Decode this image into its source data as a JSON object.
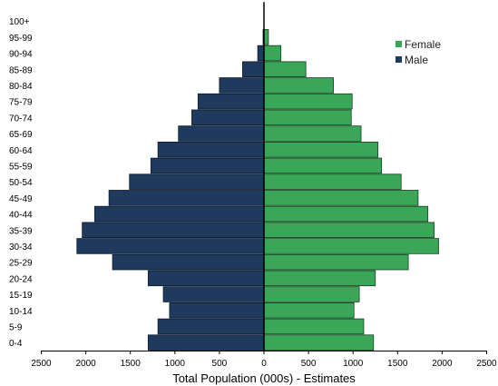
{
  "chart_data": {
    "type": "bar",
    "orientation": "horizontal",
    "subtype": "population-pyramid",
    "categories": [
      "0-4",
      "5-9",
      "10-14",
      "15-19",
      "20-24",
      "25-29",
      "30-34",
      "35-39",
      "40-44",
      "45-49",
      "50-54",
      "55-59",
      "60-64",
      "65-69",
      "70-74",
      "75-79",
      "80-84",
      "85-89",
      "90-94",
      "95-99",
      "100+"
    ],
    "series": [
      {
        "name": "Male",
        "color": "#1f3a5c",
        "values": [
          1300,
          1190,
          1060,
          1130,
          1300,
          1700,
          2100,
          2040,
          1900,
          1740,
          1510,
          1270,
          1190,
          960,
          810,
          740,
          500,
          240,
          70,
          10,
          0
        ]
      },
      {
        "name": "Female",
        "color": "#3aa657",
        "values": [
          1230,
          1120,
          1010,
          1070,
          1250,
          1620,
          1960,
          1910,
          1840,
          1730,
          1540,
          1320,
          1280,
          1090,
          980,
          990,
          780,
          470,
          190,
          50,
          0
        ]
      }
    ],
    "xlabel": "Total Population (000s) - Estimates",
    "x_ticks": [
      "2500",
      "2000",
      "1500",
      "1000",
      "500",
      "0",
      "500",
      "1000",
      "1500",
      "2000",
      "2500"
    ],
    "xlim": [
      -2500,
      2500
    ],
    "grid": false,
    "legend": {
      "position": "top-right",
      "entries": [
        "Female",
        "Male"
      ]
    }
  }
}
